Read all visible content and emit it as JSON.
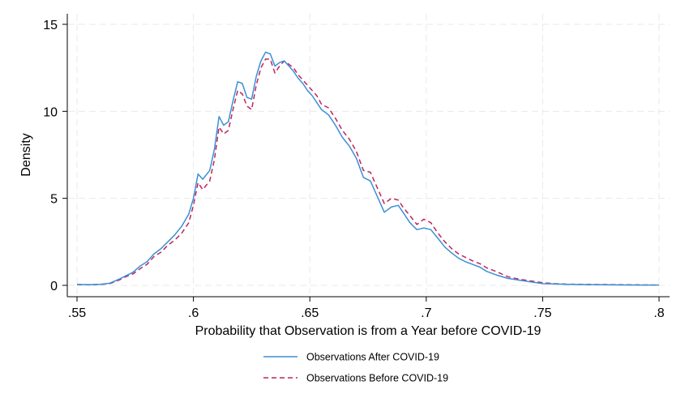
{
  "chart_data": {
    "type": "line",
    "title": "",
    "xlabel": "Probability that Observation is from a Year before COVID-19",
    "ylabel": "Density",
    "xlim": [
      0.55,
      0.8
    ],
    "ylim": [
      0,
      15
    ],
    "xticks": [
      0.55,
      0.6,
      0.65,
      0.7,
      0.75,
      0.8
    ],
    "xtick_labels": [
      ".55",
      ".6",
      ".65",
      ".7",
      ".75",
      ".8"
    ],
    "yticks": [
      0,
      5,
      10,
      15
    ],
    "ytick_labels": [
      "0",
      "5",
      "10",
      "15"
    ],
    "grid": true,
    "legend_position": "bottom",
    "series": [
      {
        "name": "Observations After COVID-19",
        "color": "#3a8fd6",
        "style": "solid",
        "x": [
          0.55,
          0.555,
          0.56,
          0.564,
          0.568,
          0.571,
          0.574,
          0.577,
          0.58,
          0.583,
          0.586,
          0.589,
          0.592,
          0.595,
          0.598,
          0.6,
          0.602,
          0.604,
          0.607,
          0.609,
          0.611,
          0.613,
          0.615,
          0.617,
          0.619,
          0.621,
          0.623,
          0.625,
          0.627,
          0.629,
          0.631,
          0.633,
          0.635,
          0.637,
          0.639,
          0.641,
          0.643,
          0.645,
          0.647,
          0.649,
          0.651,
          0.653,
          0.655,
          0.658,
          0.661,
          0.664,
          0.667,
          0.67,
          0.673,
          0.676,
          0.679,
          0.682,
          0.685,
          0.688,
          0.69,
          0.693,
          0.696,
          0.699,
          0.702,
          0.705,
          0.708,
          0.711,
          0.714,
          0.717,
          0.72,
          0.723,
          0.726,
          0.73,
          0.735,
          0.74,
          0.745,
          0.75,
          0.755,
          0.76,
          0.77,
          0.78,
          0.79,
          0.8
        ],
        "y": [
          0.05,
          0.04,
          0.06,
          0.12,
          0.35,
          0.55,
          0.75,
          1.1,
          1.35,
          1.8,
          2.1,
          2.5,
          2.9,
          3.4,
          4.1,
          5.0,
          6.4,
          6.1,
          6.6,
          7.8,
          9.7,
          9.2,
          9.4,
          10.6,
          11.7,
          11.6,
          10.8,
          10.7,
          12.0,
          12.9,
          13.4,
          13.3,
          12.6,
          12.8,
          12.9,
          12.6,
          12.3,
          11.9,
          11.6,
          11.2,
          10.9,
          10.5,
          10.1,
          9.8,
          9.2,
          8.5,
          8.0,
          7.3,
          6.2,
          6.0,
          5.1,
          4.2,
          4.5,
          4.6,
          4.2,
          3.6,
          3.2,
          3.3,
          3.2,
          2.7,
          2.2,
          1.85,
          1.55,
          1.35,
          1.2,
          1.05,
          0.8,
          0.6,
          0.4,
          0.3,
          0.2,
          0.1,
          0.08,
          0.06,
          0.04,
          0.03,
          0.02,
          0.02
        ]
      },
      {
        "name": "Observations Before COVID-19",
        "color": "#c0245c",
        "style": "dashed",
        "x": [
          0.55,
          0.555,
          0.56,
          0.564,
          0.568,
          0.571,
          0.574,
          0.577,
          0.58,
          0.583,
          0.586,
          0.589,
          0.592,
          0.595,
          0.598,
          0.6,
          0.602,
          0.604,
          0.607,
          0.609,
          0.611,
          0.613,
          0.615,
          0.617,
          0.619,
          0.621,
          0.623,
          0.625,
          0.627,
          0.629,
          0.631,
          0.633,
          0.635,
          0.637,
          0.639,
          0.641,
          0.643,
          0.645,
          0.647,
          0.649,
          0.651,
          0.653,
          0.655,
          0.658,
          0.661,
          0.664,
          0.667,
          0.67,
          0.673,
          0.676,
          0.679,
          0.682,
          0.685,
          0.688,
          0.69,
          0.693,
          0.696,
          0.699,
          0.702,
          0.705,
          0.708,
          0.711,
          0.714,
          0.717,
          0.72,
          0.723,
          0.726,
          0.73,
          0.735,
          0.74,
          0.745,
          0.75,
          0.755,
          0.76,
          0.77,
          0.78,
          0.79,
          0.8
        ],
        "y": [
          0.04,
          0.03,
          0.05,
          0.1,
          0.3,
          0.5,
          0.65,
          0.95,
          1.2,
          1.65,
          1.9,
          2.3,
          2.6,
          3.0,
          3.6,
          4.6,
          5.9,
          5.5,
          6.0,
          7.2,
          9.1,
          8.7,
          8.9,
          10.1,
          11.2,
          11.0,
          10.3,
          10.1,
          11.5,
          12.5,
          13.0,
          13.0,
          12.2,
          12.6,
          12.9,
          12.7,
          12.5,
          12.1,
          11.8,
          11.5,
          11.2,
          10.9,
          10.4,
          10.2,
          9.6,
          8.9,
          8.4,
          7.7,
          6.6,
          6.5,
          5.6,
          4.7,
          5.0,
          4.9,
          4.5,
          4.0,
          3.5,
          3.8,
          3.6,
          3.0,
          2.5,
          2.1,
          1.8,
          1.6,
          1.4,
          1.25,
          1.0,
          0.8,
          0.5,
          0.35,
          0.25,
          0.15,
          0.1,
          0.07,
          0.05,
          0.04,
          0.03,
          0.02
        ]
      }
    ]
  }
}
